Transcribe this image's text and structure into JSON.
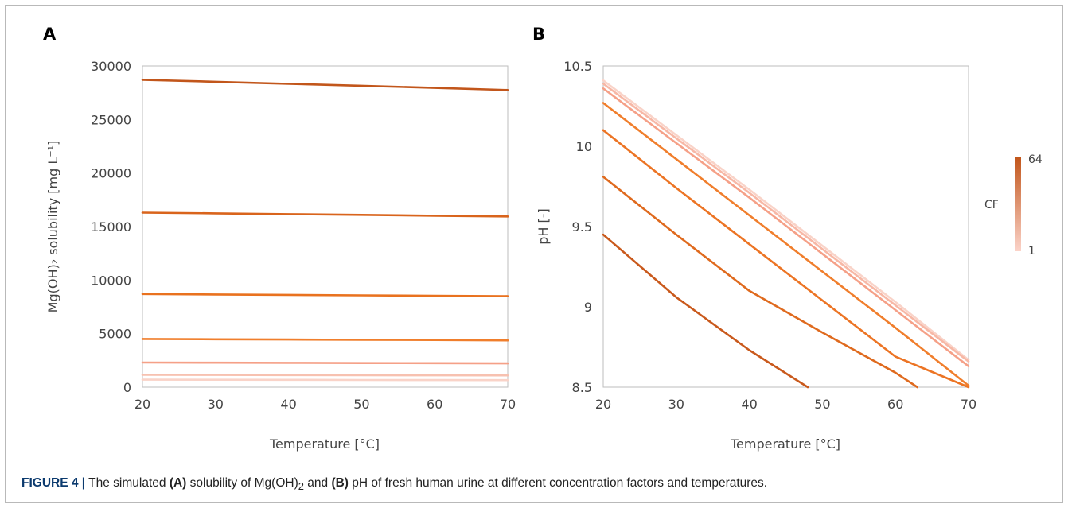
{
  "chart_data": [
    {
      "type": "line",
      "panel_label": "A",
      "xlabel": "Temperature [°C]",
      "ylabel": "Mg(OH)₂ solubility [mg L⁻¹]",
      "xlim": [
        20,
        70
      ],
      "ylim": [
        0,
        30000
      ],
      "xticks": [
        20,
        30,
        40,
        50,
        60,
        70
      ],
      "yticks": [
        0,
        5000,
        10000,
        15000,
        20000,
        25000,
        30000
      ],
      "x": [
        20,
        30,
        40,
        50,
        60,
        70
      ],
      "series": [
        {
          "color": "#f9d3c8",
          "values": [
            700,
            690,
            680,
            670,
            660,
            650
          ]
        },
        {
          "color": "#f7c1b0",
          "values": [
            1150,
            1140,
            1130,
            1120,
            1110,
            1100
          ]
        },
        {
          "color": "#f5a087",
          "values": [
            2300,
            2290,
            2270,
            2250,
            2240,
            2220
          ]
        },
        {
          "color": "#f07e2c",
          "values": [
            4500,
            4470,
            4450,
            4420,
            4400,
            4370
          ]
        },
        {
          "color": "#e9721f",
          "values": [
            8700,
            8660,
            8620,
            8580,
            8540,
            8500
          ]
        },
        {
          "color": "#d9641c",
          "values": [
            16300,
            16230,
            16160,
            16090,
            16010,
            15940
          ]
        },
        {
          "color": "#c2561b",
          "values": [
            28700,
            28520,
            28330,
            28150,
            27950,
            27750
          ]
        }
      ]
    },
    {
      "type": "line",
      "panel_label": "B",
      "xlabel": "Temperature [°C]",
      "ylabel": "pH [-]",
      "xlim": [
        20,
        70
      ],
      "ylim": [
        8.5,
        10.5
      ],
      "xticks": [
        20,
        30,
        40,
        50,
        60,
        70
      ],
      "yticks": [
        8.5,
        9,
        9.5,
        10,
        10.5
      ],
      "colorbar": {
        "label": "CF",
        "max_label": "64",
        "min_label": "1",
        "max_color": "#c2561b",
        "min_color": "#fbd3c9"
      },
      "series": [
        {
          "color": "#f9d3c8",
          "x": [
            20,
            30,
            40,
            50,
            60,
            70
          ],
          "values": [
            10.41,
            10.07,
            9.73,
            9.38,
            9.03,
            8.67
          ]
        },
        {
          "color": "#f7b8a6",
          "x": [
            20,
            30,
            40,
            50,
            60,
            70
          ],
          "values": [
            10.39,
            10.05,
            9.71,
            9.36,
            9.01,
            8.66
          ]
        },
        {
          "color": "#f5a087",
          "x": [
            20,
            30,
            40,
            50,
            60,
            70
          ],
          "values": [
            10.36,
            10.02,
            9.68,
            9.33,
            8.98,
            8.63
          ]
        },
        {
          "color": "#f07e2c",
          "x": [
            20,
            30,
            40,
            50,
            60,
            70
          ],
          "values": [
            10.27,
            9.92,
            9.57,
            9.22,
            8.87,
            8.51
          ]
        },
        {
          "color": "#ec7424",
          "x": [
            20,
            30,
            40,
            50,
            60,
            70
          ],
          "values": [
            10.1,
            9.74,
            9.39,
            9.04,
            8.69,
            8.5
          ]
        },
        {
          "color": "#df6a1e",
          "x": [
            20,
            30,
            40,
            50,
            60,
            63
          ],
          "values": [
            9.81,
            9.45,
            9.1,
            8.84,
            8.59,
            8.5
          ]
        },
        {
          "color": "#c9591c",
          "x": [
            20,
            30,
            40,
            48
          ],
          "values": [
            9.45,
            9.06,
            8.73,
            8.5
          ]
        }
      ]
    }
  ],
  "caption": {
    "figure_label": "FIGURE 4 |",
    "text1": " The simulated ",
    "bold_a": "(A)",
    "text2": " solubility of Mg(OH)",
    "sub": "2",
    "text3": " and ",
    "bold_b": "(B)",
    "text4": " pH of fresh human urine at different concentration factors and temperatures."
  }
}
